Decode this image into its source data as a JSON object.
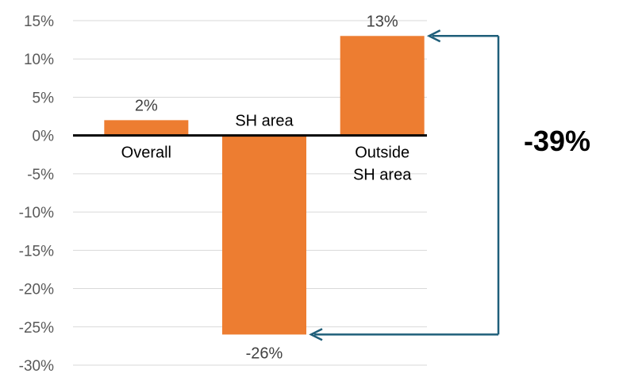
{
  "chart_data": {
    "type": "bar",
    "categories": [
      [
        "Overall"
      ],
      [
        "SH area"
      ],
      [
        "Outside",
        "SH area"
      ]
    ],
    "values": [
      2,
      -26,
      13
    ],
    "value_labels": [
      "2%",
      "-26%",
      "13%"
    ],
    "ylim": [
      -30,
      15
    ],
    "yticks": [
      15,
      10,
      5,
      0,
      -5,
      -10,
      -15,
      -20,
      -25,
      -30
    ],
    "ytick_labels": [
      "15%",
      "10%",
      "5%",
      "0%",
      "-5%",
      "-10%",
      "-15%",
      "-20%",
      "-25%",
      "-30%"
    ],
    "grid": true,
    "annotation": {
      "text": "-39%",
      "from_category": 2,
      "to_category": 1
    },
    "colors": {
      "bar": "#ED7D31",
      "grid": "#D9D9D9",
      "zero_line": "#000000",
      "arrow": "#1F5F7A",
      "tick": "#595959"
    }
  }
}
